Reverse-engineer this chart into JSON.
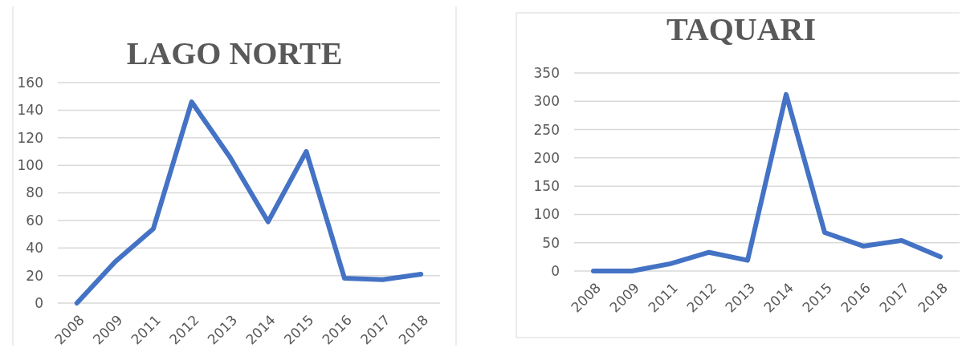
{
  "chart_data": [
    {
      "type": "line",
      "title": "LAGO NORTE",
      "categories": [
        "2008",
        "2009",
        "2011",
        "2012",
        "2013",
        "2014",
        "2015",
        "2016",
        "2017",
        "2018"
      ],
      "series": [
        {
          "color": "#4472c4",
          "values": [
            0,
            30,
            54,
            146,
            106,
            59,
            110,
            18,
            17,
            21
          ]
        }
      ],
      "ylim": [
        0,
        160
      ],
      "yticks": [
        0,
        20,
        40,
        60,
        80,
        100,
        120,
        140,
        160
      ],
      "grid": "y",
      "marker": "none",
      "line_style": "solid"
    },
    {
      "type": "line",
      "title": "TAQUARI",
      "categories": [
        "2008",
        "2009",
        "2011",
        "2012",
        "2013",
        "2014",
        "2015",
        "2016",
        "2017",
        "2018"
      ],
      "series": [
        {
          "color": "#4472c4",
          "values": [
            0,
            0,
            13,
            33,
            19,
            312,
            68,
            44,
            54,
            25
          ]
        }
      ],
      "ylim": [
        0,
        350
      ],
      "yticks": [
        0,
        50,
        100,
        150,
        200,
        250,
        300,
        350
      ],
      "grid": "y",
      "marker": "none",
      "line_style": "solid"
    }
  ]
}
